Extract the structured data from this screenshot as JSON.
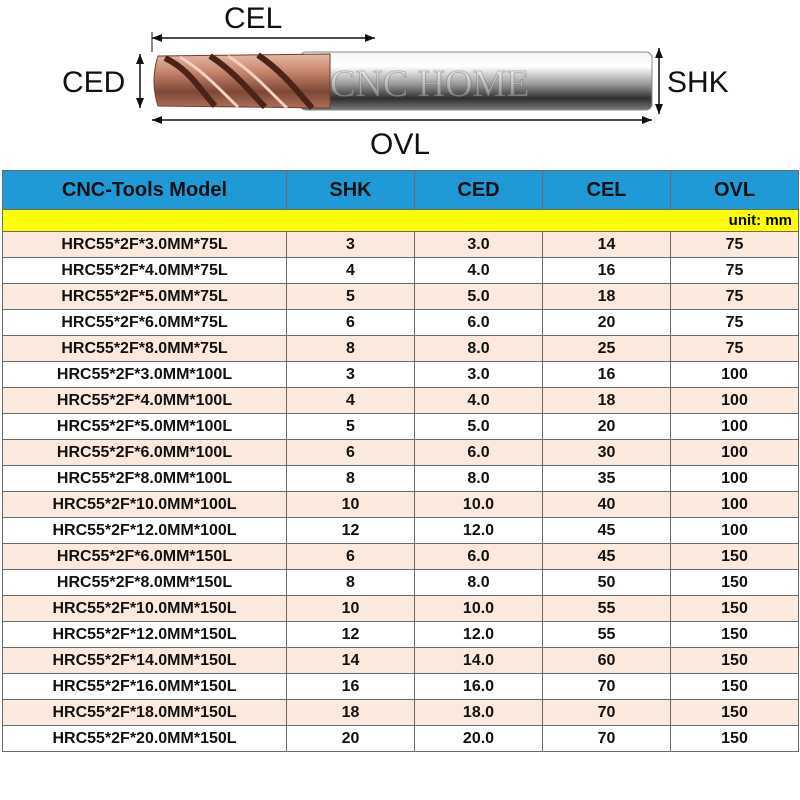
{
  "diagram": {
    "labels": {
      "cel": "CEL",
      "ced": "CED",
      "shk": "SHK",
      "ovl": "OVL"
    },
    "watermark": "CNC HOME"
  },
  "table": {
    "headers": [
      "CNC-Tools Model",
      "SHK",
      "CED",
      "CEL",
      "OVL"
    ],
    "unit": "unit: mm",
    "rows": [
      [
        "HRC55*2F*3.0MM*75L",
        "3",
        "3.0",
        "14",
        "75"
      ],
      [
        "HRC55*2F*4.0MM*75L",
        "4",
        "4.0",
        "16",
        "75"
      ],
      [
        "HRC55*2F*5.0MM*75L",
        "5",
        "5.0",
        "18",
        "75"
      ],
      [
        "HRC55*2F*6.0MM*75L",
        "6",
        "6.0",
        "20",
        "75"
      ],
      [
        "HRC55*2F*8.0MM*75L",
        "8",
        "8.0",
        "25",
        "75"
      ],
      [
        "HRC55*2F*3.0MM*100L",
        "3",
        "3.0",
        "16",
        "100"
      ],
      [
        "HRC55*2F*4.0MM*100L",
        "4",
        "4.0",
        "18",
        "100"
      ],
      [
        "HRC55*2F*5.0MM*100L",
        "5",
        "5.0",
        "20",
        "100"
      ],
      [
        "HRC55*2F*6.0MM*100L",
        "6",
        "6.0",
        "30",
        "100"
      ],
      [
        "HRC55*2F*8.0MM*100L",
        "8",
        "8.0",
        "35",
        "100"
      ],
      [
        "HRC55*2F*10.0MM*100L",
        "10",
        "10.0",
        "40",
        "100"
      ],
      [
        "HRC55*2F*12.0MM*100L",
        "12",
        "12.0",
        "45",
        "100"
      ],
      [
        "HRC55*2F*6.0MM*150L",
        "6",
        "6.0",
        "45",
        "150"
      ],
      [
        "HRC55*2F*8.0MM*150L",
        "8",
        "8.0",
        "50",
        "150"
      ],
      [
        "HRC55*2F*10.0MM*150L",
        "10",
        "10.0",
        "55",
        "150"
      ],
      [
        "HRC55*2F*12.0MM*150L",
        "12",
        "12.0",
        "55",
        "150"
      ],
      [
        "HRC55*2F*14.0MM*150L",
        "14",
        "14.0",
        "60",
        "150"
      ],
      [
        "HRC55*2F*16.0MM*150L",
        "16",
        "16.0",
        "70",
        "150"
      ],
      [
        "HRC55*2F*18.0MM*150L",
        "18",
        "18.0",
        "70",
        "150"
      ],
      [
        "HRC55*2F*20.0MM*150L",
        "20",
        "20.0",
        "70",
        "150"
      ]
    ]
  },
  "colors": {
    "header_blue": "#1f9ad6",
    "unit_yellow": "#ffff00",
    "alt_row": "#fbe9dd",
    "flute_copper": "#b0705a",
    "shank_gray": "#d8d8d8"
  }
}
